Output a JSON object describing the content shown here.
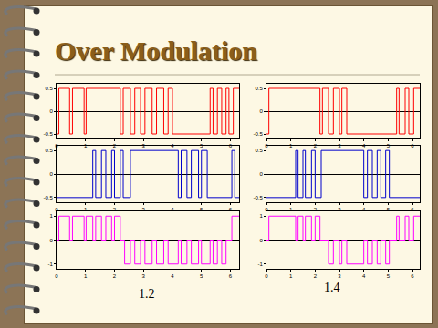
{
  "title": "Over Modulation",
  "annotations": [
    "1.2",
    "1.4"
  ],
  "chart_data": [
    {
      "type": "line",
      "line_style": "step",
      "color": "#ff0000",
      "x": [
        0,
        0.08,
        0.45,
        0.55,
        0.95,
        1.02,
        2.2,
        2.3,
        2.55,
        2.7,
        2.9,
        3.05,
        3.3,
        3.45,
        3.7,
        3.85,
        4.0,
        5.3,
        5.4,
        5.55,
        5.7,
        5.85,
        5.95,
        6.1,
        6.3
      ],
      "values": [
        -0.5,
        0.5,
        -0.5,
        0.5,
        -0.5,
        0.5,
        -0.5,
        0.5,
        -0.5,
        0.5,
        -0.5,
        0.5,
        -0.5,
        0.5,
        -0.5,
        0.5,
        -0.5,
        0.5,
        -0.5,
        0.5,
        -0.5,
        0.5,
        -0.5,
        0.5,
        0.5
      ],
      "xlim": [
        0,
        6.3
      ],
      "xticks": [
        0,
        1,
        2,
        3,
        4,
        5,
        6
      ],
      "ylim": [
        -0.6,
        0.6
      ],
      "yticks": [
        -0.5,
        0,
        0.5
      ],
      "grid": false
    },
    {
      "type": "line",
      "line_style": "step",
      "color": "#0000cc",
      "x": [
        0,
        1.25,
        1.35,
        1.55,
        1.7,
        1.9,
        2.0,
        2.2,
        2.3,
        2.55,
        4.2,
        4.3,
        4.5,
        4.65,
        4.9,
        5.0,
        5.2,
        6.05,
        6.15,
        6.3
      ],
      "values": [
        -0.5,
        0.5,
        -0.5,
        0.5,
        -0.5,
        0.5,
        -0.5,
        0.5,
        -0.5,
        0.5,
        -0.5,
        0.5,
        -0.5,
        0.5,
        -0.5,
        0.5,
        -0.5,
        0.5,
        -0.5,
        -0.5
      ],
      "xlim": [
        0,
        6.3
      ],
      "xticks": [
        0,
        1,
        2,
        3,
        4,
        5,
        6
      ],
      "ylim": [
        -0.6,
        0.6
      ],
      "yticks": [
        -0.5,
        0,
        0.5
      ],
      "grid": false
    },
    {
      "type": "line",
      "line_style": "step",
      "color": "#ff00ff",
      "x": [
        0,
        0.08,
        0.45,
        0.55,
        0.95,
        1.02,
        1.25,
        1.35,
        1.55,
        1.7,
        1.9,
        2.0,
        2.2,
        2.35,
        2.55,
        2.7,
        2.9,
        3.05,
        3.3,
        3.45,
        3.7,
        3.85,
        4.2,
        4.3,
        4.5,
        4.65,
        4.9,
        5.0,
        5.3,
        5.4,
        5.55,
        5.7,
        5.85,
        6.05,
        6.3
      ],
      "values": [
        0,
        1,
        0,
        1,
        0,
        1,
        0,
        1,
        0,
        1,
        0,
        1,
        0,
        -1,
        0,
        -1,
        0,
        -1,
        0,
        -1,
        0,
        -1,
        0,
        -1,
        0,
        -1,
        0,
        -1,
        0,
        -1,
        0,
        -1,
        0,
        1,
        1
      ],
      "xlim": [
        0,
        6.3
      ],
      "xticks": [
        0,
        1,
        2,
        3,
        4,
        5,
        6
      ],
      "ylim": [
        -1.2,
        1.2
      ],
      "yticks": [
        -1,
        0,
        1
      ],
      "grid": false
    },
    {
      "type": "line",
      "line_style": "step",
      "color": "#ff0000",
      "x": [
        0,
        0.1,
        2.2,
        2.3,
        2.55,
        2.75,
        3.0,
        3.1,
        3.3,
        5.35,
        5.45,
        5.7,
        5.85,
        6.05,
        6.3
      ],
      "values": [
        -0.5,
        0.5,
        -0.5,
        0.5,
        -0.5,
        0.5,
        -0.5,
        0.5,
        -0.5,
        0.5,
        -0.5,
        0.5,
        -0.5,
        0.5,
        0.5
      ],
      "xlim": [
        0,
        6.3
      ],
      "xticks": [
        0,
        1,
        2,
        3,
        4,
        5,
        6
      ],
      "ylim": [
        -0.6,
        0.6
      ],
      "yticks": [
        -0.5,
        0,
        0.5
      ],
      "grid": false
    },
    {
      "type": "line",
      "line_style": "step",
      "color": "#0000cc",
      "x": [
        0,
        1.2,
        1.3,
        1.5,
        1.6,
        1.85,
        2.0,
        2.25,
        4.0,
        4.15,
        4.35,
        4.55,
        4.7,
        4.9,
        5.05,
        6.3
      ],
      "values": [
        -0.5,
        0.5,
        -0.5,
        0.5,
        -0.5,
        0.5,
        -0.5,
        0.5,
        -0.5,
        0.5,
        -0.5,
        0.5,
        -0.5,
        0.5,
        -0.5,
        -0.5
      ],
      "xlim": [
        0,
        6.3
      ],
      "xticks": [
        0,
        1,
        2,
        3,
        4,
        5,
        6
      ],
      "ylim": [
        -0.6,
        0.6
      ],
      "yticks": [
        -0.5,
        0,
        0.5
      ],
      "grid": false
    },
    {
      "type": "line",
      "line_style": "step",
      "color": "#ff00ff",
      "x": [
        0,
        0.1,
        1.2,
        1.3,
        1.5,
        1.6,
        1.85,
        2.0,
        2.2,
        2.55,
        2.75,
        3.0,
        3.1,
        3.3,
        4.0,
        4.15,
        4.35,
        4.55,
        4.7,
        4.9,
        5.05,
        5.35,
        5.45,
        5.7,
        5.85,
        6.05,
        6.3
      ],
      "values": [
        0,
        1,
        0,
        1,
        0,
        1,
        0,
        1,
        0,
        -1,
        0,
        -1,
        0,
        -1,
        0,
        -1,
        0,
        -1,
        0,
        -1,
        0,
        1,
        0,
        1,
        0,
        1,
        1
      ],
      "xlim": [
        0,
        6.3
      ],
      "xticks": [
        0,
        1,
        2,
        3,
        4,
        5,
        6
      ],
      "ylim": [
        -1.2,
        1.2
      ],
      "yticks": [
        -1,
        0,
        1
      ],
      "grid": false
    }
  ]
}
